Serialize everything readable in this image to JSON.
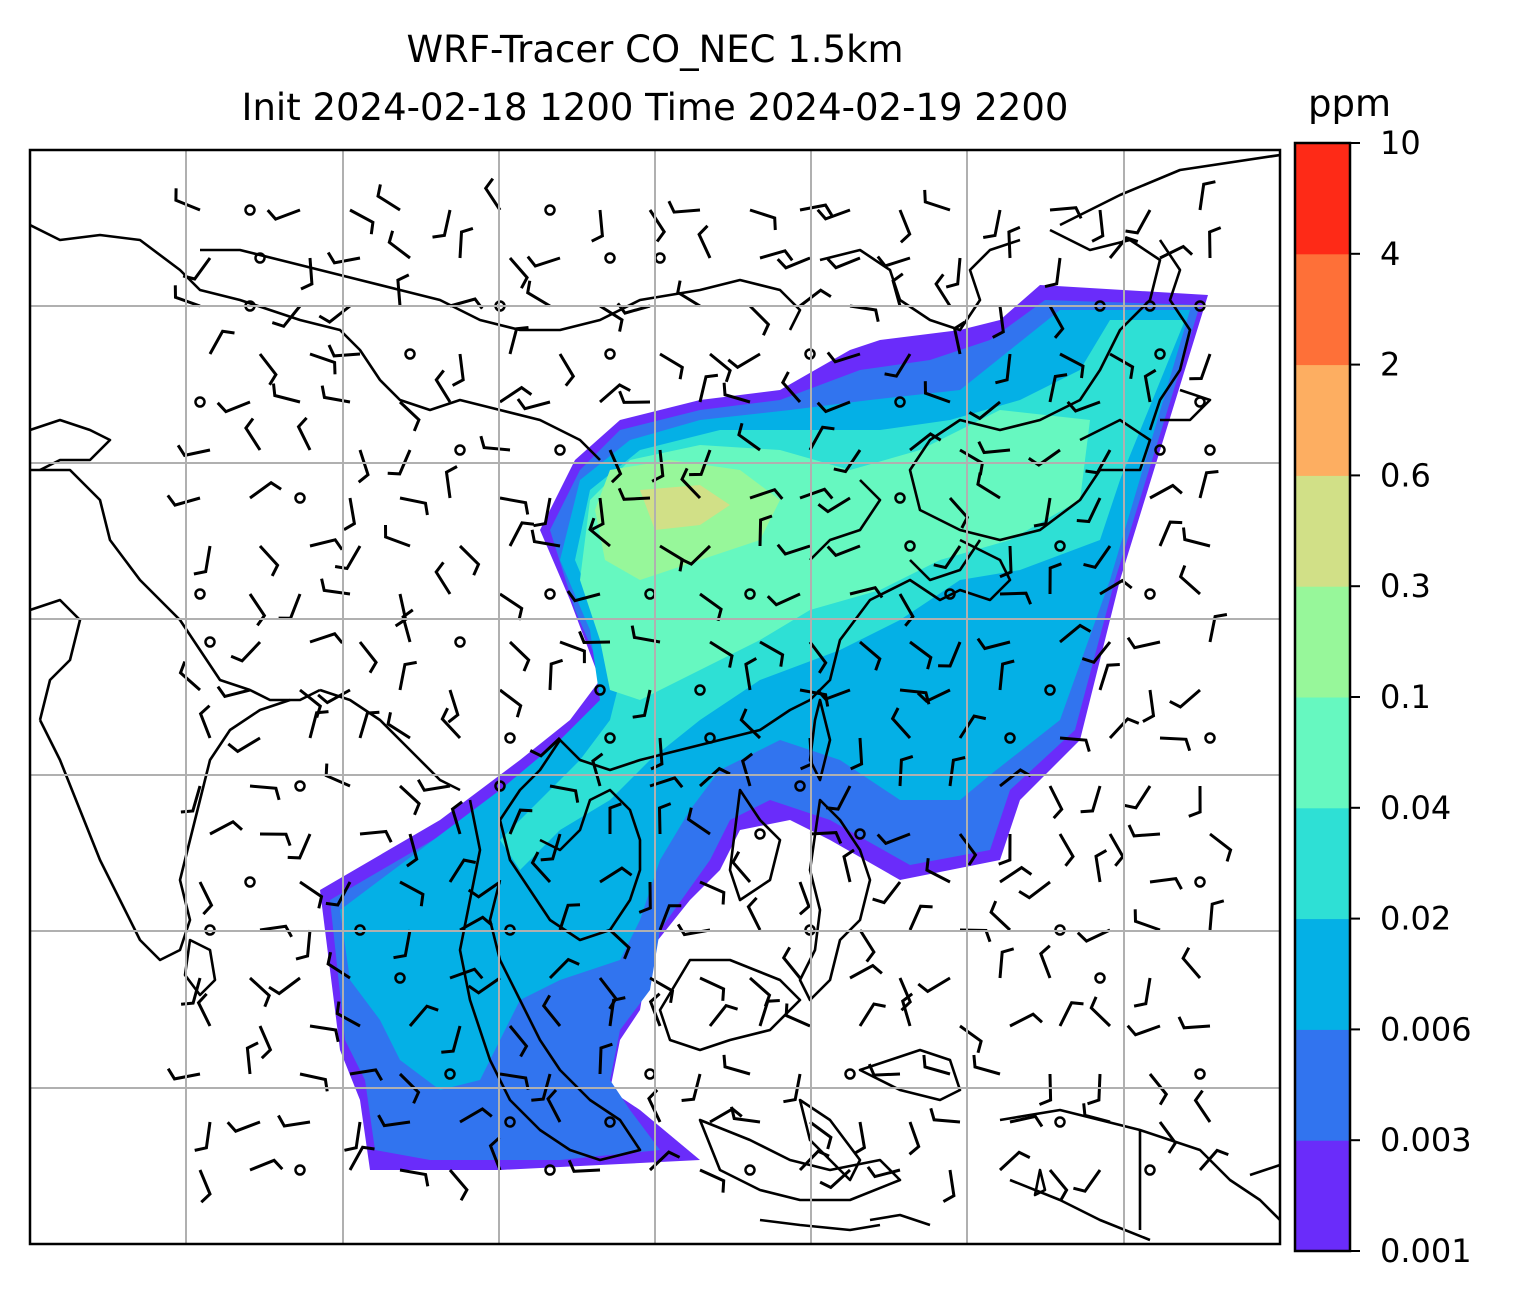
{
  "title": {
    "line1": "WRF-Tracer CO_NEC 1.5km",
    "line2": "Init 2024-02-18 1200 Time 2024-02-19 2200"
  },
  "colorbar": {
    "unit": "ppm",
    "ticks": [
      "0.001",
      "0.003",
      "0.006",
      "0.02",
      "0.04",
      "0.1",
      "0.3",
      "0.6",
      "2",
      "4",
      "10"
    ],
    "colors": [
      "#6a2cfa",
      "#3174ef",
      "#04b0e6",
      "#2ee0d5",
      "#66f8c0",
      "#97f79a",
      "#d1e087",
      "#fdae61",
      "#fe7038",
      "#fe2a17"
    ]
  },
  "map": {
    "gridlines": true,
    "coastline_color": "#000000",
    "grid_color": "#b0b0b0"
  }
}
